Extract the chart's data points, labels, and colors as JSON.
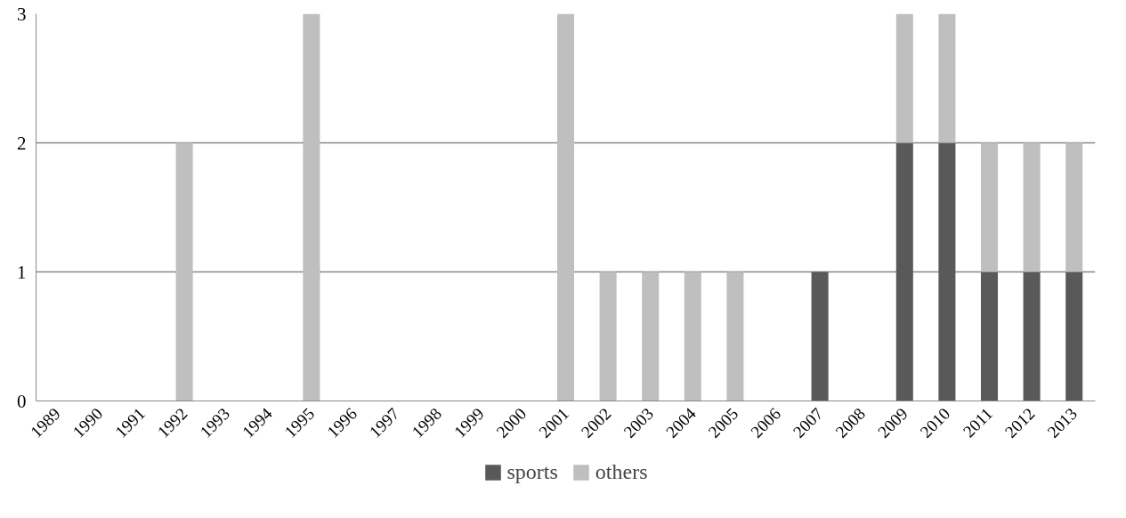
{
  "chart_data": {
    "type": "bar",
    "stacked": true,
    "categories": [
      "1989",
      "1990",
      "1991",
      "1992",
      "1993",
      "1994",
      "1995",
      "1996",
      "1997",
      "1998",
      "1999",
      "2000",
      "2001",
      "2002",
      "2003",
      "2004",
      "2005",
      "2006",
      "2007",
      "2008",
      "2009",
      "2010",
      "2011",
      "2012",
      "2013"
    ],
    "series": [
      {
        "name": "sports",
        "color": "#595959",
        "values": [
          0,
          0,
          0,
          0,
          0,
          0,
          0,
          0,
          0,
          0,
          0,
          0,
          0,
          0,
          0,
          0,
          0,
          0,
          1,
          0,
          2,
          2,
          1,
          1,
          1
        ]
      },
      {
        "name": "others",
        "color": "#bfbfbf",
        "values": [
          0,
          0,
          0,
          2,
          0,
          0,
          3,
          0,
          0,
          0,
          0,
          0,
          3,
          1,
          1,
          1,
          1,
          0,
          0,
          0,
          1,
          1,
          1,
          1,
          1
        ]
      }
    ],
    "ylim": [
      0,
      3
    ],
    "yticks": [
      0,
      1,
      2,
      3
    ],
    "grid": "y",
    "legend": "bottom"
  }
}
